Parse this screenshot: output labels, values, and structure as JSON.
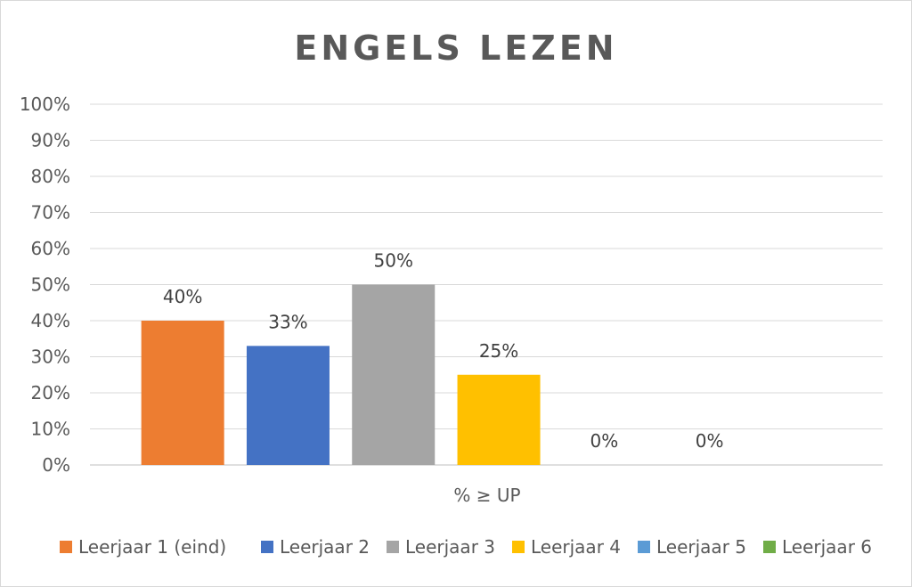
{
  "chart_data": {
    "type": "bar",
    "title": "ENGELS LEZEN",
    "categories": [
      "% ≥ UP"
    ],
    "series": [
      {
        "name": "Leerjaar 1 (eind)",
        "values": [
          40
        ],
        "color": "#ed7d31",
        "label": "40%"
      },
      {
        "name": "Leerjaar 2",
        "values": [
          33
        ],
        "color": "#4472c4",
        "label": "33%"
      },
      {
        "name": "Leerjaar 3",
        "values": [
          50
        ],
        "color": "#a5a5a5",
        "label": "50%"
      },
      {
        "name": "Leerjaar 4",
        "values": [
          25
        ],
        "color": "#ffc000",
        "label": "25%"
      },
      {
        "name": "Leerjaar 5",
        "values": [
          0
        ],
        "color": "#5b9bd5",
        "label": "0%"
      },
      {
        "name": "Leerjaar 6",
        "values": [
          0
        ],
        "color": "#70ad47",
        "label": "0%"
      }
    ],
    "ylim": [
      0,
      100
    ],
    "yticks": [
      "0%",
      "10%",
      "20%",
      "30%",
      "40%",
      "50%",
      "60%",
      "70%",
      "80%",
      "90%",
      "100%"
    ],
    "grid": true,
    "legend": "bottom"
  }
}
